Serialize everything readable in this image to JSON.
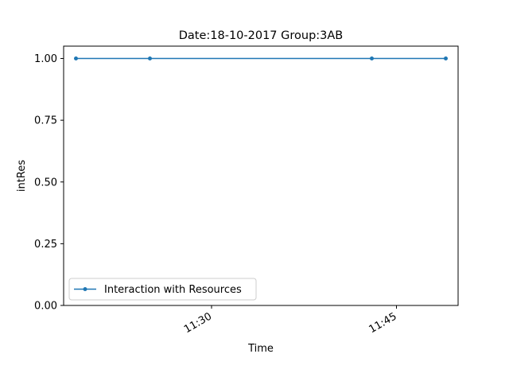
{
  "chart_data": {
    "type": "line",
    "title": "Date:18-10-2017  Group:3AB",
    "xlabel": "Time",
    "ylabel": "intRes",
    "x_is_time": true,
    "x": [
      "11:19",
      "11:25",
      "11:43",
      "11:49"
    ],
    "xlim": [
      "11:18",
      "11:50"
    ],
    "xticks": [
      "11:30",
      "11:45"
    ],
    "ylim": [
      0,
      1.05
    ],
    "yticks": [
      "0.00",
      "0.25",
      "0.50",
      "0.75",
      "1.00"
    ],
    "series": [
      {
        "name": "Interaction with Resources",
        "values": [
          1,
          1,
          1,
          1
        ],
        "color": "#1f77b4",
        "marker": "dot"
      }
    ],
    "legend_position": "lower-left",
    "grid": false
  }
}
